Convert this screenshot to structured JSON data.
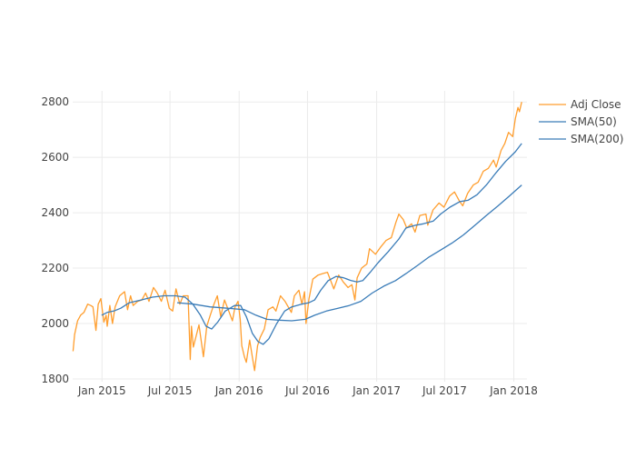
{
  "chart_data": {
    "type": "line",
    "title": "",
    "xlabel": "",
    "ylabel": "",
    "xlim": [
      "2014-10-15",
      "2018-02-05"
    ],
    "ylim": [
      1790,
      2840
    ],
    "x_ticks": [
      {
        "date": "2015-01-01",
        "label": "Jan 2015"
      },
      {
        "date": "2015-07-01",
        "label": "Jul 2015"
      },
      {
        "date": "2016-01-01",
        "label": "Jan 2016"
      },
      {
        "date": "2016-07-01",
        "label": "Jul 2016"
      },
      {
        "date": "2017-01-01",
        "label": "Jan 2017"
      },
      {
        "date": "2017-07-01",
        "label": "Jul 2017"
      },
      {
        "date": "2018-01-01",
        "label": "Jan 2018"
      }
    ],
    "y_ticks": [
      {
        "value": 1800,
        "label": "1800"
      },
      {
        "value": 2000,
        "label": "2000"
      },
      {
        "value": 2200,
        "label": "2200"
      },
      {
        "value": 2400,
        "label": "2400"
      },
      {
        "value": 2600,
        "label": "2600"
      },
      {
        "value": 2800,
        "label": "2800"
      }
    ],
    "grid": true,
    "legend_position": "top-right",
    "series": [
      {
        "name": "Adj Close",
        "color": "#ff9e2e",
        "points": [
          [
            "2014-10-16",
            1900
          ],
          [
            "2014-10-20",
            1960
          ],
          [
            "2014-10-28",
            2010
          ],
          [
            "2014-11-05",
            2030
          ],
          [
            "2014-11-14",
            2040
          ],
          [
            "2014-11-24",
            2070
          ],
          [
            "2014-12-02",
            2065
          ],
          [
            "2014-12-08",
            2060
          ],
          [
            "2014-12-16",
            1975
          ],
          [
            "2014-12-22",
            2070
          ],
          [
            "2014-12-29",
            2090
          ],
          [
            "2015-01-06",
            2005
          ],
          [
            "2015-01-12",
            2030
          ],
          [
            "2015-01-15",
            1990
          ],
          [
            "2015-01-22",
            2065
          ],
          [
            "2015-01-29",
            2000
          ],
          [
            "2015-02-05",
            2060
          ],
          [
            "2015-02-17",
            2100
          ],
          [
            "2015-03-02",
            2115
          ],
          [
            "2015-03-10",
            2050
          ],
          [
            "2015-03-18",
            2100
          ],
          [
            "2015-03-25",
            2065
          ],
          [
            "2015-04-06",
            2080
          ],
          [
            "2015-04-17",
            2085
          ],
          [
            "2015-04-27",
            2110
          ],
          [
            "2015-05-06",
            2080
          ],
          [
            "2015-05-18",
            2130
          ],
          [
            "2015-05-28",
            2110
          ],
          [
            "2015-06-08",
            2080
          ],
          [
            "2015-06-18",
            2120
          ],
          [
            "2015-06-29",
            2055
          ],
          [
            "2015-07-08",
            2045
          ],
          [
            "2015-07-17",
            2125
          ],
          [
            "2015-07-27",
            2070
          ],
          [
            "2015-08-05",
            2100
          ],
          [
            "2015-08-18",
            2100
          ],
          [
            "2015-08-24",
            1870
          ],
          [
            "2015-08-27",
            1990
          ],
          [
            "2015-09-01",
            1915
          ],
          [
            "2015-09-16",
            1995
          ],
          [
            "2015-09-28",
            1880
          ],
          [
            "2015-10-07",
            1990
          ],
          [
            "2015-10-16",
            2030
          ],
          [
            "2015-10-26",
            2070
          ],
          [
            "2015-11-04",
            2100
          ],
          [
            "2015-11-13",
            2025
          ],
          [
            "2015-11-23",
            2085
          ],
          [
            "2015-12-03",
            2050
          ],
          [
            "2015-12-14",
            2010
          ],
          [
            "2015-12-21",
            2060
          ],
          [
            "2015-12-29",
            2080
          ],
          [
            "2016-01-04",
            2015
          ],
          [
            "2016-01-08",
            1920
          ],
          [
            "2016-01-15",
            1880
          ],
          [
            "2016-01-20",
            1860
          ],
          [
            "2016-01-29",
            1940
          ],
          [
            "2016-02-05",
            1880
          ],
          [
            "2016-02-11",
            1830
          ],
          [
            "2016-02-19",
            1920
          ],
          [
            "2016-02-26",
            1950
          ],
          [
            "2016-03-08",
            1980
          ],
          [
            "2016-03-18",
            2050
          ],
          [
            "2016-03-31",
            2060
          ],
          [
            "2016-04-08",
            2045
          ],
          [
            "2016-04-20",
            2100
          ],
          [
            "2016-05-02",
            2080
          ],
          [
            "2016-05-19",
            2040
          ],
          [
            "2016-05-27",
            2100
          ],
          [
            "2016-06-08",
            2120
          ],
          [
            "2016-06-16",
            2070
          ],
          [
            "2016-06-23",
            2115
          ],
          [
            "2016-06-27",
            2000
          ],
          [
            "2016-07-05",
            2090
          ],
          [
            "2016-07-15",
            2160
          ],
          [
            "2016-07-29",
            2175
          ],
          [
            "2016-08-10",
            2180
          ],
          [
            "2016-08-23",
            2185
          ],
          [
            "2016-09-09",
            2125
          ],
          [
            "2016-09-22",
            2175
          ],
          [
            "2016-10-04",
            2150
          ],
          [
            "2016-10-17",
            2130
          ],
          [
            "2016-10-27",
            2140
          ],
          [
            "2016-11-04",
            2085
          ],
          [
            "2016-11-10",
            2165
          ],
          [
            "2016-11-22",
            2200
          ],
          [
            "2016-12-06",
            2215
          ],
          [
            "2016-12-13",
            2270
          ],
          [
            "2016-12-29",
            2250
          ],
          [
            "2017-01-11",
            2275
          ],
          [
            "2017-01-26",
            2300
          ],
          [
            "2017-02-09",
            2310
          ],
          [
            "2017-02-21",
            2365
          ],
          [
            "2017-03-01",
            2395
          ],
          [
            "2017-03-13",
            2375
          ],
          [
            "2017-03-22",
            2345
          ],
          [
            "2017-04-04",
            2360
          ],
          [
            "2017-04-13",
            2330
          ],
          [
            "2017-04-26",
            2390
          ],
          [
            "2017-05-12",
            2395
          ],
          [
            "2017-05-17",
            2355
          ],
          [
            "2017-05-31",
            2410
          ],
          [
            "2017-06-16",
            2435
          ],
          [
            "2017-06-29",
            2420
          ],
          [
            "2017-07-14",
            2460
          ],
          [
            "2017-07-27",
            2475
          ],
          [
            "2017-08-10",
            2440
          ],
          [
            "2017-08-18",
            2425
          ],
          [
            "2017-08-31",
            2470
          ],
          [
            "2017-09-15",
            2500
          ],
          [
            "2017-09-28",
            2510
          ],
          [
            "2017-10-12",
            2550
          ],
          [
            "2017-10-25",
            2560
          ],
          [
            "2017-11-08",
            2590
          ],
          [
            "2017-11-15",
            2565
          ],
          [
            "2017-11-28",
            2625
          ],
          [
            "2017-12-08",
            2650
          ],
          [
            "2017-12-18",
            2690
          ],
          [
            "2017-12-29",
            2675
          ],
          [
            "2018-01-05",
            2740
          ],
          [
            "2018-01-12",
            2780
          ],
          [
            "2018-01-16",
            2765
          ],
          [
            "2018-01-22",
            2800
          ]
        ]
      },
      {
        "name": "SMA(50)",
        "color": "#3a7cb8",
        "points": [
          [
            "2014-12-31",
            2030
          ],
          [
            "2015-01-15",
            2040
          ],
          [
            "2015-02-01",
            2045
          ],
          [
            "2015-02-20",
            2055
          ],
          [
            "2015-03-15",
            2075
          ],
          [
            "2015-04-15",
            2085
          ],
          [
            "2015-05-15",
            2095
          ],
          [
            "2015-06-15",
            2100
          ],
          [
            "2015-07-15",
            2100
          ],
          [
            "2015-08-10",
            2095
          ],
          [
            "2015-08-31",
            2070
          ],
          [
            "2015-09-20",
            2030
          ],
          [
            "2015-10-05",
            1990
          ],
          [
            "2015-10-20",
            1980
          ],
          [
            "2015-11-05",
            2005
          ],
          [
            "2015-11-25",
            2045
          ],
          [
            "2015-12-20",
            2065
          ],
          [
            "2016-01-05",
            2065
          ],
          [
            "2016-01-20",
            2025
          ],
          [
            "2016-02-05",
            1965
          ],
          [
            "2016-02-20",
            1935
          ],
          [
            "2016-03-05",
            1925
          ],
          [
            "2016-03-20",
            1945
          ],
          [
            "2016-04-10",
            2000
          ],
          [
            "2016-05-01",
            2045
          ],
          [
            "2016-05-20",
            2060
          ],
          [
            "2016-06-15",
            2070
          ],
          [
            "2016-07-05",
            2075
          ],
          [
            "2016-07-20",
            2085
          ],
          [
            "2016-08-05",
            2120
          ],
          [
            "2016-08-25",
            2155
          ],
          [
            "2016-09-15",
            2170
          ],
          [
            "2016-10-05",
            2165
          ],
          [
            "2016-10-25",
            2155
          ],
          [
            "2016-11-10",
            2150
          ],
          [
            "2016-11-25",
            2155
          ],
          [
            "2016-12-15",
            2185
          ],
          [
            "2017-01-05",
            2220
          ],
          [
            "2017-02-01",
            2260
          ],
          [
            "2017-03-01",
            2305
          ],
          [
            "2017-03-20",
            2345
          ],
          [
            "2017-04-15",
            2355
          ],
          [
            "2017-05-05",
            2360
          ],
          [
            "2017-06-01",
            2370
          ],
          [
            "2017-06-20",
            2395
          ],
          [
            "2017-07-15",
            2420
          ],
          [
            "2017-08-10",
            2440
          ],
          [
            "2017-09-01",
            2445
          ],
          [
            "2017-09-25",
            2465
          ],
          [
            "2017-10-20",
            2500
          ],
          [
            "2017-11-15",
            2545
          ],
          [
            "2017-12-10",
            2585
          ],
          [
            "2018-01-05",
            2620
          ],
          [
            "2018-01-22",
            2650
          ]
        ]
      },
      {
        "name": "SMA(200)",
        "color": "#3a7cb8",
        "points": [
          [
            "2015-07-20",
            2075
          ],
          [
            "2015-09-01",
            2070
          ],
          [
            "2015-10-15",
            2060
          ],
          [
            "2015-12-01",
            2055
          ],
          [
            "2016-01-15",
            2050
          ],
          [
            "2016-02-15",
            2030
          ],
          [
            "2016-03-15",
            2015
          ],
          [
            "2016-04-15",
            2012
          ],
          [
            "2016-05-20",
            2010
          ],
          [
            "2016-06-25",
            2015
          ],
          [
            "2016-07-20",
            2030
          ],
          [
            "2016-08-20",
            2045
          ],
          [
            "2016-09-20",
            2055
          ],
          [
            "2016-10-20",
            2065
          ],
          [
            "2016-11-20",
            2080
          ],
          [
            "2016-12-20",
            2110
          ],
          [
            "2017-01-20",
            2135
          ],
          [
            "2017-02-20",
            2155
          ],
          [
            "2017-03-20",
            2180
          ],
          [
            "2017-04-20",
            2210
          ],
          [
            "2017-05-20",
            2240
          ],
          [
            "2017-06-20",
            2265
          ],
          [
            "2017-07-20",
            2290
          ],
          [
            "2017-08-20",
            2320
          ],
          [
            "2017-09-20",
            2355
          ],
          [
            "2017-10-20",
            2390
          ],
          [
            "2017-11-20",
            2425
          ],
          [
            "2017-12-20",
            2460
          ],
          [
            "2018-01-22",
            2500
          ]
        ]
      }
    ]
  }
}
